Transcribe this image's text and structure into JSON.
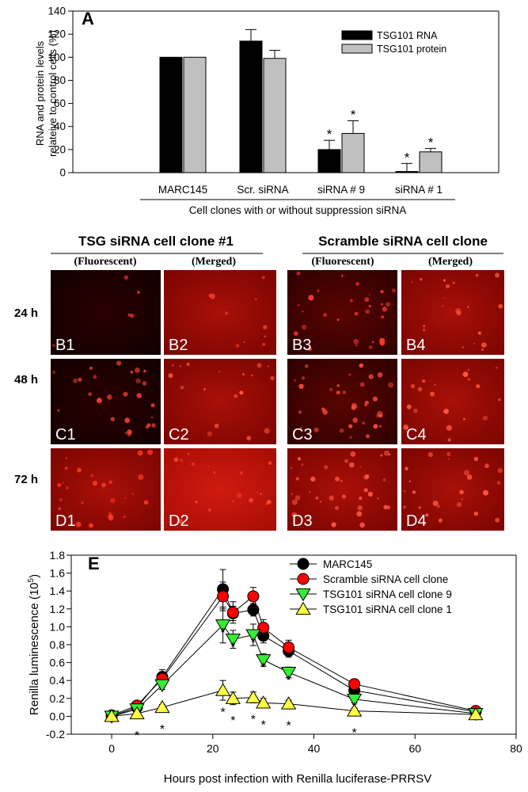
{
  "panel_a": {
    "letter": "A",
    "ylabel_line1": "RNA and protein levels",
    "ylabel_line2": "relateive to control cells (%)",
    "xlabel": "Cell clones with or without suppression siRNA",
    "star": "*",
    "yticks": [
      "0",
      "20",
      "40",
      "60",
      "80",
      "100",
      "120",
      "140"
    ]
  },
  "panel_images": {
    "left_title": "TSG siRNA cell clone #1",
    "right_title": "Scramble siRNA cell clone",
    "col_fluorescent": "(Fluorescent)",
    "col_merged": "(Merged)",
    "rows": [
      "24 h",
      "48 h",
      "72 h"
    ],
    "tiles": [
      [
        "B1",
        "B2",
        "B3",
        "B4"
      ],
      [
        "C1",
        "C2",
        "C3",
        "C4"
      ],
      [
        "D1",
        "D2",
        "D3",
        "D4"
      ]
    ]
  },
  "panel_e": {
    "letter": "E",
    "ylabel": "Renilla luminescence (10",
    "ylabel_exp": "5",
    "ylabel_close": ")",
    "xlabel": "Hours post infection with Renilla luciferase-PRRSV",
    "xticks": [
      "0",
      "20",
      "40",
      "60",
      "80"
    ],
    "yticks": [
      "-0.2",
      "0.0",
      "0.2",
      "0.4",
      "0.6",
      "0.8",
      "1.0",
      "1.2",
      "1.4",
      "1.6",
      "1.8"
    ],
    "star": "*"
  },
  "chart_data": [
    {
      "type": "bar",
      "categories": [
        "MARC145",
        "Scr. siRNA",
        "siRNA # 9",
        "siRNA # 1"
      ],
      "series": [
        {
          "name": "TSG101 RNA",
          "color": "#000000",
          "values": [
            100,
            114,
            20,
            1
          ],
          "errors": [
            0,
            10,
            8,
            7
          ],
          "significant": [
            false,
            false,
            true,
            true
          ]
        },
        {
          "name": "TSG101 protein",
          "color": "#c0c0c0",
          "values": [
            100,
            99,
            34,
            18
          ],
          "errors": [
            0,
            7,
            11,
            3
          ],
          "significant": [
            false,
            false,
            true,
            true
          ]
        }
      ],
      "ylim": [
        0,
        140
      ]
    },
    {
      "type": "line",
      "x": [
        0,
        5,
        10,
        22,
        24,
        28,
        30,
        35,
        48,
        72
      ],
      "series": [
        {
          "name": "MARC145",
          "marker": "circle",
          "color": "#000000",
          "values": [
            0.0,
            0.1,
            0.44,
            1.42,
            1.15,
            1.19,
            0.9,
            0.73,
            0.29,
            0.05
          ],
          "errors": [
            0.02,
            0.04,
            0.08,
            0.22,
            0.08,
            0.07,
            0.08,
            0.07,
            0.05,
            0.02
          ]
        },
        {
          "name": "Scramble siRNA cell clone",
          "marker": "circle",
          "color": "#ff0000",
          "values": [
            0.01,
            0.12,
            0.42,
            1.34,
            1.16,
            1.34,
            0.99,
            0.77,
            0.36,
            0.06
          ],
          "errors": [
            0.02,
            0.03,
            0.06,
            0.16,
            0.12,
            0.1,
            0.09,
            0.08,
            0.04,
            0.02
          ]
        },
        {
          "name": "TSG101 siRNA cell clone 9",
          "marker": "triangle-down",
          "color": "#33ee33",
          "values": [
            0.0,
            0.08,
            0.35,
            1.02,
            0.86,
            0.91,
            0.63,
            0.49,
            0.19,
            0.03
          ],
          "errors": [
            0.02,
            0.03,
            0.05,
            0.2,
            0.1,
            0.12,
            0.07,
            0.06,
            0.04,
            0.02
          ],
          "significant": [
            false,
            false,
            false,
            true,
            true,
            true,
            true,
            true,
            true,
            false
          ]
        },
        {
          "name": "TSG101 siRNA cell clone 1",
          "marker": "triangle-up",
          "color": "#ffff44",
          "values": [
            0.0,
            0.03,
            0.1,
            0.29,
            0.2,
            0.21,
            0.15,
            0.14,
            0.06,
            0.02
          ],
          "errors": [
            0.02,
            0.02,
            0.03,
            0.11,
            0.07,
            0.06,
            0.05,
            0.04,
            0.03,
            0.02
          ],
          "significant": [
            false,
            true,
            true,
            true,
            true,
            true,
            true,
            true,
            true,
            false
          ]
        }
      ],
      "xlim": [
        -8,
        80
      ],
      "ylim": [
        -0.2,
        1.8
      ]
    }
  ]
}
